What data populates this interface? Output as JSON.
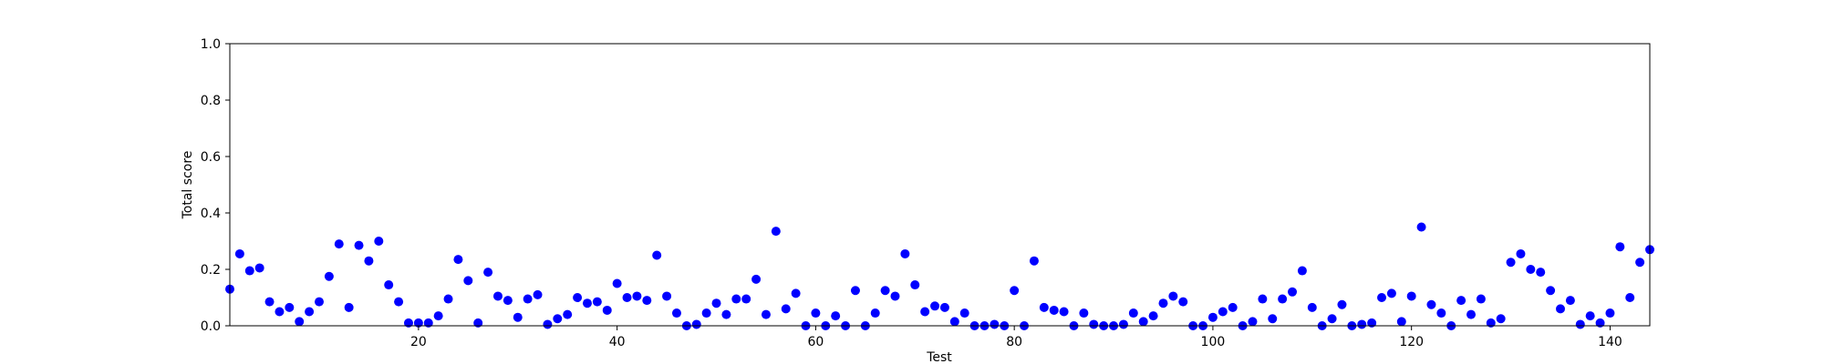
{
  "chart_data": {
    "type": "scatter",
    "title": "",
    "xlabel": "Test",
    "ylabel": "Total score",
    "xlim": [
      1,
      144
    ],
    "ylim": [
      0,
      1.0
    ],
    "xticks": [
      20,
      40,
      60,
      80,
      100,
      120,
      140
    ],
    "xtick_labels": [
      "20",
      "40",
      "60",
      "80",
      "100",
      "120",
      "140"
    ],
    "yticks": [
      0.0,
      0.2,
      0.4,
      0.6,
      0.8,
      1.0
    ],
    "ytick_labels": [
      "0.0",
      "0.2",
      "0.4",
      "0.6",
      "0.8",
      "1.0"
    ],
    "grid": false,
    "marker_color": "#0000ff",
    "series": [
      {
        "x": [
          1,
          2,
          3,
          4,
          5,
          6,
          7,
          8,
          9,
          10,
          11,
          12,
          13,
          14,
          15,
          16,
          17,
          18,
          19,
          20,
          21,
          22,
          23,
          24,
          25,
          26,
          27,
          28,
          29,
          30,
          31,
          32,
          33,
          34,
          35,
          36,
          37,
          38,
          39,
          40,
          41,
          42,
          43,
          44,
          45,
          46,
          47,
          48,
          49,
          50,
          51,
          52,
          53,
          54,
          55,
          56,
          57,
          58,
          59,
          60,
          61,
          62,
          63,
          64,
          65,
          66,
          67,
          68,
          69,
          70,
          71,
          72,
          73,
          74,
          75,
          76,
          77,
          78,
          79,
          80,
          81,
          82,
          83,
          84,
          85,
          86,
          87,
          88,
          89,
          90,
          91,
          92,
          93,
          94,
          95,
          96,
          97,
          98,
          99,
          100,
          101,
          102,
          103,
          104,
          105,
          106,
          107,
          108,
          109,
          110,
          111,
          112,
          113,
          114,
          115,
          116,
          117,
          118,
          119,
          120,
          121,
          122,
          123,
          124,
          125,
          126,
          127,
          128,
          129,
          130,
          131,
          132,
          133,
          134,
          135,
          136,
          137,
          138,
          139,
          140,
          141,
          142,
          143,
          144
        ],
        "values": [
          0.13,
          0.255,
          0.195,
          0.205,
          0.085,
          0.05,
          0.065,
          0.015,
          0.05,
          0.085,
          0.175,
          0.29,
          0.065,
          0.285,
          0.23,
          0.3,
          0.145,
          0.085,
          0.01,
          0.01,
          0.01,
          0.035,
          0.095,
          0.235,
          0.16,
          0.01,
          0.19,
          0.105,
          0.09,
          0.03,
          0.095,
          0.11,
          0.005,
          0.025,
          0.04,
          0.1,
          0.08,
          0.085,
          0.055,
          0.15,
          0.1,
          0.105,
          0.09,
          0.25,
          0.105,
          0.045,
          0.0,
          0.005,
          0.045,
          0.08,
          0.04,
          0.095,
          0.095,
          0.165,
          0.04,
          0.335,
          0.06,
          0.115,
          0.0,
          0.045,
          0.0,
          0.035,
          0.0,
          0.125,
          0.0,
          0.045,
          0.125,
          0.105,
          0.255,
          0.145,
          0.05,
          0.07,
          0.065,
          0.015,
          0.045,
          0.0,
          0.0,
          0.005,
          0.0,
          0.125,
          0.0,
          0.23,
          0.065,
          0.055,
          0.05,
          0.0,
          0.045,
          0.005,
          0.0,
          0.0,
          0.005,
          0.045,
          0.015,
          0.035,
          0.08,
          0.105,
          0.085,
          0.0,
          0.0,
          0.03,
          0.05,
          0.065,
          0.0,
          0.015,
          0.095,
          0.025,
          0.095,
          0.12,
          0.195,
          0.065,
          0.0,
          0.025,
          0.075,
          0.0,
          0.005,
          0.01,
          0.1,
          0.115,
          0.015,
          0.105,
          0.35,
          0.075,
          0.045,
          0.0,
          0.09,
          0.04,
          0.095,
          0.01,
          0.025,
          0.225,
          0.255,
          0.2,
          0.19,
          0.125,
          0.06,
          0.09,
          0.005,
          0.035,
          0.01,
          0.045,
          0.28,
          0.1,
          0.225,
          0.27
        ]
      }
    ]
  }
}
